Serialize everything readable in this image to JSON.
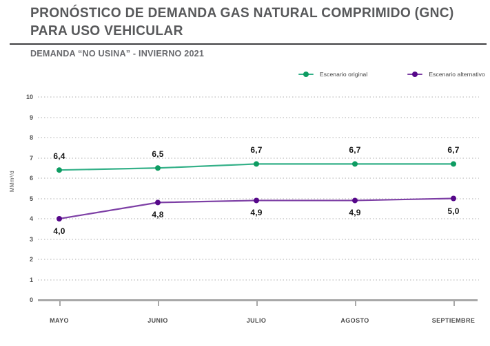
{
  "header": {
    "title_line1": "PRONÓSTICO DE DEMANDA GAS NATURAL COMPRIMIDO (GNC)",
    "title_line2": "PARA USO VEHICULAR",
    "subtitle": "DEMANDA “NO USINA” - INVIERNO 2021"
  },
  "chart_data": {
    "type": "line",
    "title": "PRONÓSTICO DE DEMANDA GAS NATURAL COMPRIMIDO (GNC) PARA USO VEHICULAR",
    "subtitle": "DEMANDA “NO USINA” - INVIERNO 2021",
    "categories": [
      "MAYO",
      "JUNIO",
      "JULIO",
      "AGOSTO",
      "SEPTIEMBRE"
    ],
    "series": [
      {
        "name": "Escenario original",
        "values": [
          6.4,
          6.5,
          6.7,
          6.7,
          6.7
        ],
        "labels": [
          "6,4",
          "6,5",
          "6,7",
          "6,7",
          "6,7"
        ],
        "line_color": "#35b189",
        "dot_color": "#0e9c62",
        "label_position": "above"
      },
      {
        "name": "Escenario alternativo",
        "values": [
          4.0,
          4.8,
          4.9,
          4.9,
          5.0
        ],
        "labels": [
          "4,0",
          "4,8",
          "4,9",
          "4,9",
          "5,0"
        ],
        "line_color": "#7d3fa5",
        "dot_color": "#56088a",
        "label_position": "below"
      }
    ],
    "xlabel": "",
    "ylabel": "MMm³/d",
    "ylim": [
      0,
      10
    ],
    "yticks": [
      0,
      1,
      2,
      3,
      4,
      5,
      6,
      7,
      8,
      9,
      10
    ],
    "grid": "horizontal-dotted",
    "legend_position": "top-right"
  }
}
